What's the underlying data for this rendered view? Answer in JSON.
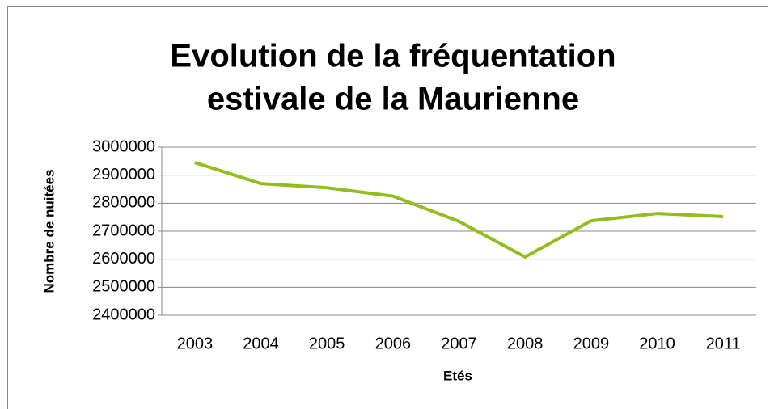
{
  "chart_data": {
    "type": "line",
    "title": [
      "Evolution de la fréquentation",
      "estivale de la Maurienne"
    ],
    "xlabel": "Etés",
    "ylabel": "Nombre de nuitées",
    "categories": [
      "2003",
      "2004",
      "2005",
      "2006",
      "2007",
      "2008",
      "2009",
      "2010",
      "2011"
    ],
    "series": [
      {
        "name": "Nombre de nuitées",
        "color": "#92bd1c",
        "values": [
          2945000,
          2870000,
          2855000,
          2825000,
          2735000,
          2608000,
          2737000,
          2763000,
          2752000
        ]
      }
    ],
    "ylim": [
      2400000,
      3000000
    ],
    "yticks": [
      2400000,
      2500000,
      2600000,
      2700000,
      2800000,
      2900000,
      3000000
    ],
    "grid": true
  }
}
